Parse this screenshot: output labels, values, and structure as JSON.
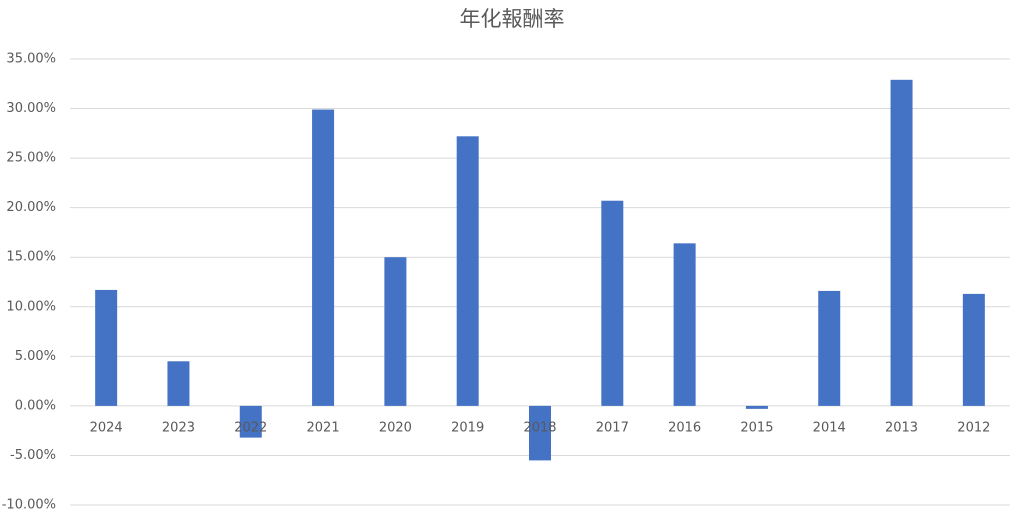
{
  "chart_data": {
    "type": "bar",
    "title": "年化報酬率",
    "categories": [
      "2024",
      "2023",
      "2022",
      "2021",
      "2020",
      "2019",
      "2018",
      "2017",
      "2016",
      "2015",
      "2014",
      "2013",
      "2012"
    ],
    "values": [
      11.7,
      4.5,
      -3.2,
      29.9,
      15.0,
      27.2,
      -5.5,
      20.7,
      16.4,
      -0.3,
      11.6,
      32.9,
      11.3
    ],
    "color": "#4472c4",
    "ylim": [
      -10,
      35
    ],
    "yticks": [
      {
        "value": -10,
        "label": "-10.00%"
      },
      {
        "value": -5,
        "label": "-5.00%"
      },
      {
        "value": 0,
        "label": "0.00%"
      },
      {
        "value": 5,
        "label": "5.00%"
      },
      {
        "value": 10,
        "label": "10.00%"
      },
      {
        "value": 15,
        "label": "15.00%"
      },
      {
        "value": 20,
        "label": "20.00%"
      },
      {
        "value": 25,
        "label": "25.00%"
      },
      {
        "value": 30,
        "label": "30.00%"
      },
      {
        "value": 35,
        "label": "35.00%"
      }
    ],
    "grid": true
  }
}
